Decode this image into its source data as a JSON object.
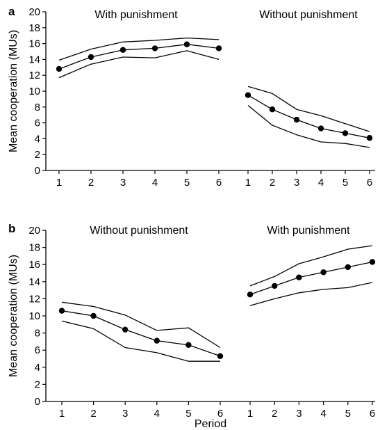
{
  "chart_data": [
    {
      "type": "line",
      "panel_label": "a",
      "ylabel": "Mean cooperation (MUs)",
      "xlabel": "",
      "ylim": [
        0,
        20
      ],
      "yticks": [
        0,
        2,
        4,
        6,
        8,
        10,
        12,
        14,
        16,
        18,
        20
      ],
      "groups": [
        {
          "title": "With punishment",
          "x": [
            1,
            2,
            3,
            4,
            5,
            6
          ],
          "series": [
            {
              "role": "upper",
              "values": [
                13.9,
                15.3,
                16.2,
                16.4,
                16.7,
                16.5
              ]
            },
            {
              "role": "mean",
              "values": [
                12.8,
                14.3,
                15.2,
                15.4,
                15.9,
                15.4
              ]
            },
            {
              "role": "lower",
              "values": [
                11.7,
                13.4,
                14.3,
                14.2,
                15.1,
                14.0
              ]
            }
          ]
        },
        {
          "title": "Without punishment",
          "x": [
            1,
            2,
            3,
            4,
            5,
            6
          ],
          "series": [
            {
              "role": "upper",
              "values": [
                10.6,
                9.7,
                7.7,
                6.9,
                5.9,
                4.9
              ]
            },
            {
              "role": "mean",
              "values": [
                9.5,
                7.7,
                6.4,
                5.3,
                4.7,
                4.1
              ]
            },
            {
              "role": "lower",
              "values": [
                8.2,
                5.7,
                4.5,
                3.6,
                3.4,
                2.9
              ]
            }
          ]
        }
      ]
    },
    {
      "type": "line",
      "panel_label": "b",
      "ylabel": "Mean cooperation (MUs)",
      "xlabel": "Period",
      "ylim": [
        0,
        20
      ],
      "yticks": [
        0,
        2,
        4,
        6,
        8,
        10,
        12,
        14,
        16,
        18,
        20
      ],
      "groups": [
        {
          "title": "Without punishment",
          "x": [
            1,
            2,
            3,
            4,
            5,
            6
          ],
          "series": [
            {
              "role": "upper",
              "values": [
                11.6,
                11.1,
                10.1,
                8.3,
                8.6,
                6.3
              ]
            },
            {
              "role": "mean",
              "values": [
                10.6,
                10.0,
                8.4,
                7.1,
                6.6,
                5.3
              ]
            },
            {
              "role": "lower",
              "values": [
                9.4,
                8.5,
                6.3,
                5.7,
                4.7,
                4.7
              ]
            }
          ]
        },
        {
          "title": "With punishment",
          "x": [
            1,
            2,
            3,
            4,
            5,
            6
          ],
          "series": [
            {
              "role": "upper",
              "values": [
                13.5,
                14.6,
                16.1,
                16.9,
                17.8,
                18.2
              ]
            },
            {
              "role": "mean",
              "values": [
                12.5,
                13.5,
                14.5,
                15.1,
                15.7,
                16.3
              ]
            },
            {
              "role": "lower",
              "values": [
                11.2,
                12.0,
                12.7,
                13.1,
                13.3,
                13.9
              ]
            }
          ]
        }
      ]
    }
  ]
}
